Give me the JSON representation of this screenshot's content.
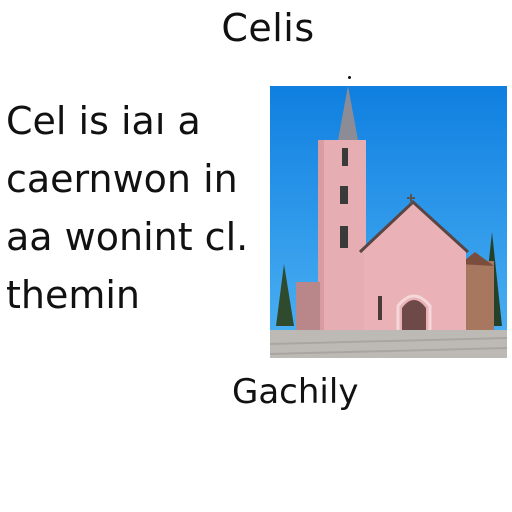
{
  "title": "Celis",
  "body_lines": [
    "Cel is iaı a",
    "caernwon in",
    "aa wonint cl.",
    "themin"
  ],
  "caption": "Gachily",
  "photo": {
    "sky_color": "#1f8fe6",
    "church_color": "#e9b4b7",
    "ground_color": "#b9b6b3"
  }
}
